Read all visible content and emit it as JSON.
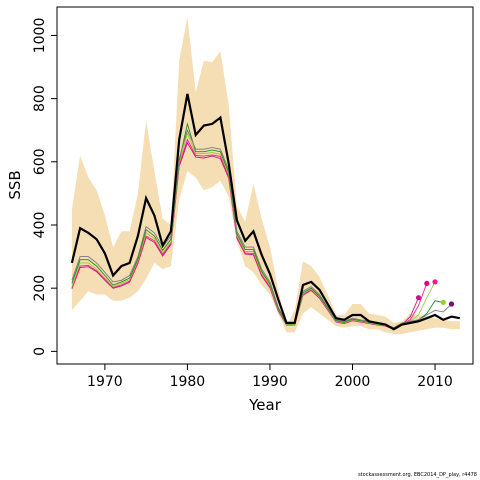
{
  "chart_data": {
    "type": "line",
    "xlabel": "Year",
    "ylabel": "SSB",
    "xlim": [
      1964.2,
      2014.6
    ],
    "ylim": [
      -40,
      1090
    ],
    "x_ticks": [
      1970,
      1980,
      1990,
      2000,
      2010
    ],
    "y_ticks": [
      0,
      200,
      400,
      600,
      800,
      1000
    ],
    "grid": false,
    "legend": "none",
    "colors": {
      "band": "#f5deb3",
      "main": "#000000",
      "retro": [
        "#7a7a7a",
        "#228b22",
        "#9acd32",
        "#ff1493",
        "#c71585",
        "#dc143c",
        "#e6007e"
      ],
      "endpoint": [
        "#800080",
        "#9acd32",
        "#ff1493",
        "#e6007e",
        "#c71585"
      ]
    },
    "years": [
      1966,
      1967,
      1968,
      1969,
      1970,
      1971,
      1972,
      1973,
      1974,
      1975,
      1976,
      1977,
      1978,
      1979,
      1980,
      1981,
      1982,
      1983,
      1984,
      1985,
      1986,
      1987,
      1988,
      1989,
      1990,
      1991,
      1992,
      1993,
      1994,
      1995,
      1996,
      1997,
      1998,
      1999,
      2000,
      2001,
      2002,
      2003,
      2004,
      2005,
      2006,
      2007,
      2008,
      2009,
      2010,
      2011,
      2012,
      2013
    ],
    "band_upper": [
      450,
      620,
      550,
      510,
      430,
      330,
      380,
      380,
      500,
      730,
      570,
      420,
      400,
      920,
      1060,
      820,
      920,
      915,
      950,
      780,
      460,
      410,
      530,
      420,
      330,
      195,
      80,
      130,
      285,
      270,
      235,
      180,
      115,
      115,
      150,
      150,
      120,
      115,
      110,
      90,
      95,
      120,
      115,
      110,
      105,
      100,
      95,
      95
    ],
    "band_lower": [
      130,
      160,
      190,
      180,
      180,
      160,
      160,
      170,
      190,
      230,
      280,
      260,
      270,
      480,
      570,
      550,
      510,
      520,
      540,
      490,
      350,
      270,
      250,
      210,
      180,
      120,
      60,
      60,
      120,
      140,
      120,
      100,
      80,
      75,
      80,
      80,
      70,
      70,
      60,
      55,
      55,
      60,
      65,
      70,
      75,
      75,
      70,
      70
    ],
    "series": [
      {
        "values": [
          280,
          390,
          375,
          355,
          310,
          240,
          270,
          280,
          365,
          485,
          430,
          335,
          380,
          670,
          815,
          685,
          715,
          720,
          740,
          595,
          415,
          350,
          380,
          305,
          245,
          165,
          90,
          90,
          210,
          220,
          195,
          150,
          105,
          100,
          115,
          115,
          95,
          90,
          85,
          70,
          85,
          90,
          95,
          105,
          115,
          100,
          110,
          105
        ]
      },
      {
        "values": [
          225,
          300,
          300,
          280,
          250,
          220,
          225,
          240,
          300,
          395,
          375,
          330,
          365,
          610,
          700,
          640,
          640,
          645,
          640,
          575,
          380,
          330,
          330,
          260,
          220,
          140,
          90,
          90,
          190,
          205,
          180,
          140,
          100,
          95,
          105,
          100,
          95,
          90,
          85,
          75,
          90,
          95,
          100,
          115,
          130,
          125,
          150
        ]
      },
      {
        "values": [
          215,
          290,
          290,
          270,
          240,
          210,
          220,
          232,
          292,
          385,
          365,
          320,
          355,
          602,
          720,
          632,
          632,
          637,
          632,
          566,
          372,
          322,
          322,
          253,
          213,
          136,
          87,
          87,
          185,
          200,
          175,
          137,
          97,
          92,
          102,
          97,
          92,
          87,
          83,
          72,
          87,
          93,
          100,
          120,
          160,
          155
        ]
      },
      {
        "values": [
          205,
          280,
          280,
          260,
          232,
          205,
          215,
          227,
          287,
          375,
          357,
          313,
          347,
          595,
          690,
          626,
          626,
          629,
          624,
          560,
          366,
          316,
          316,
          247,
          208,
          133,
          85,
          85,
          182,
          197,
          172,
          135,
          95,
          90,
          100,
          95,
          90,
          85,
          82,
          72,
          86,
          95,
          115,
          170,
          220
        ]
      },
      {
        "values": [
          200,
          270,
          272,
          255,
          228,
          202,
          210,
          222,
          282,
          365,
          350,
          307,
          342,
          590,
          670,
          620,
          618,
          622,
          617,
          553,
          361,
          311,
          310,
          242,
          204,
          130,
          84,
          84,
          180,
          195,
          170,
          133,
          94,
          89,
          98,
          94,
          89,
          84,
          81,
          71,
          85,
          100,
          145,
          215
        ]
      },
      {
        "values": [
          198,
          265,
          268,
          252,
          225,
          200,
          207,
          219,
          278,
          360,
          345,
          302,
          338,
          585,
          660,
          615,
          612,
          618,
          610,
          548,
          358,
          308,
          306,
          239,
          201,
          128,
          83,
          83,
          178,
          193,
          168,
          131,
          93,
          88,
          97,
          93,
          88,
          83,
          80,
          70,
          84,
          110,
          170
        ]
      }
    ]
  },
  "footer": {
    "credit": "stockassessment.org, EBC2014_DP_play, r4478"
  }
}
